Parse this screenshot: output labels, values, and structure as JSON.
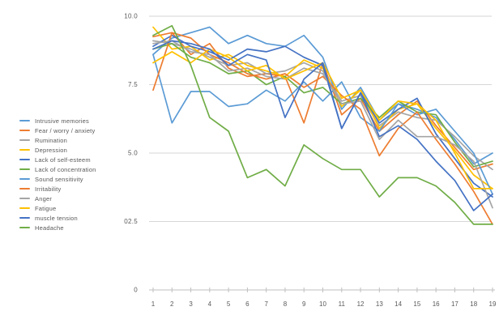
{
  "chart_data": {
    "type": "line",
    "title": "",
    "xlabel": "",
    "ylabel": "",
    "ylim": [
      0,
      10
    ],
    "grid": true,
    "legend_position": "left",
    "x": [
      1,
      2,
      3,
      4,
      5,
      6,
      7,
      8,
      9,
      10,
      11,
      12,
      13,
      14,
      15,
      16,
      17,
      18,
      19
    ],
    "x_tick_labels": [
      "1",
      "2",
      "3",
      "4",
      "5",
      "6",
      "7",
      "8",
      "9",
      "10",
      "11",
      "12",
      "13",
      "14",
      "15",
      "16",
      "17",
      "18",
      "19"
    ],
    "y_ticks": [
      {
        "label": "10.0",
        "value": 10
      },
      {
        "label": "7.5",
        "value": 7.5
      },
      {
        "label": "5.0",
        "value": 5
      },
      {
        "label": "02.5",
        "value": 2.5
      },
      {
        "label": "0",
        "value": 0
      }
    ],
    "series": [
      {
        "name": "Intrusive memories",
        "color": "#5B9BD5",
        "values": [
          8.6,
          9.2,
          9.4,
          9.6,
          9.0,
          9.3,
          9.0,
          8.9,
          9.3,
          8.5,
          6.6,
          7.4,
          6.2,
          6.8,
          6.6,
          6.3,
          5.5,
          4.6,
          5.0
        ]
      },
      {
        "name": "Fear / worry / anxiety",
        "color": "#ED7D31",
        "values": [
          9.25,
          9.4,
          8.6,
          9.0,
          8.1,
          7.8,
          7.9,
          7.8,
          6.1,
          8.3,
          6.4,
          7.0,
          5.8,
          6.4,
          6.9,
          6.0,
          5.2,
          4.4,
          4.6
        ]
      },
      {
        "name": "Rumination",
        "color": "#A5A5A5",
        "values": [
          9.1,
          9.0,
          8.8,
          8.5,
          8.2,
          8.3,
          7.9,
          8.0,
          8.3,
          8.0,
          6.9,
          7.1,
          6.0,
          6.5,
          6.3,
          6.2,
          5.6,
          4.9,
          4.4
        ]
      },
      {
        "name": "Depression",
        "color": "#FFC000",
        "values": [
          9.6,
          8.8,
          8.9,
          8.4,
          8.6,
          8.2,
          8.0,
          7.8,
          8.4,
          8.1,
          6.7,
          7.3,
          5.9,
          6.6,
          6.8,
          5.9,
          5.1,
          4.2,
          3.7
        ]
      },
      {
        "name": "Lack of self-esteem",
        "color": "#4472C4",
        "values": [
          8.9,
          9.3,
          8.9,
          8.7,
          8.4,
          8.8,
          8.7,
          8.9,
          8.5,
          8.2,
          5.9,
          7.2,
          6.1,
          6.6,
          7.0,
          5.7,
          4.8,
          3.9,
          3.4
        ]
      },
      {
        "name": "Lack of concentration",
        "color": "#70AD47",
        "values": [
          8.8,
          9.0,
          8.5,
          8.3,
          7.9,
          8.0,
          7.5,
          7.8,
          7.2,
          7.4,
          6.8,
          7.0,
          6.3,
          6.9,
          6.5,
          6.4,
          5.4,
          4.5,
          4.7
        ]
      },
      {
        "name": "Sound sensitivity",
        "color": "#5B9BD5",
        "values": [
          8.6,
          6.1,
          7.25,
          7.25,
          6.7,
          6.8,
          7.3,
          6.9,
          7.6,
          6.9,
          7.6,
          6.3,
          5.8,
          6.8,
          6.4,
          6.6,
          5.8,
          5.0,
          3.5
        ]
      },
      {
        "name": "Irritability",
        "color": "#ED7D31",
        "values": [
          7.3,
          9.4,
          9.2,
          8.6,
          8.3,
          7.9,
          7.7,
          7.9,
          7.4,
          7.8,
          7.1,
          6.6,
          4.9,
          5.9,
          6.5,
          5.5,
          4.6,
          3.6,
          2.4
        ]
      },
      {
        "name": "Anger",
        "color": "#A5A5A5",
        "values": [
          9.0,
          9.1,
          8.7,
          8.6,
          8.0,
          8.1,
          7.8,
          7.7,
          8.1,
          7.9,
          6.8,
          6.9,
          5.5,
          6.2,
          5.6,
          5.6,
          5.3,
          4.7,
          3.0
        ]
      },
      {
        "name": "Fatigue",
        "color": "#FFC000",
        "values": [
          8.3,
          8.7,
          8.3,
          8.8,
          8.5,
          8.0,
          8.2,
          7.7,
          8.0,
          8.3,
          7.0,
          7.3,
          6.2,
          6.9,
          6.8,
          6.2,
          5.0,
          3.7,
          3.7
        ]
      },
      {
        "name": "muscle tension",
        "color": "#4472C4",
        "values": [
          8.8,
          9.1,
          9.0,
          8.8,
          8.2,
          8.6,
          8.4,
          6.3,
          7.7,
          8.3,
          5.9,
          7.2,
          5.6,
          6.0,
          5.5,
          4.7,
          4.0,
          2.9,
          3.5
        ]
      },
      {
        "name": "Headache",
        "color": "#70AD47",
        "values": [
          9.3,
          9.65,
          8.2,
          6.3,
          5.8,
          4.1,
          4.4,
          3.8,
          5.3,
          4.8,
          4.4,
          4.4,
          3.4,
          4.1,
          4.1,
          3.8,
          3.2,
          2.4,
          2.4
        ]
      }
    ],
    "colors": {
      "gridline": "#D6D6D6",
      "axis": "#BFBFBF",
      "tick": "#BFBFBF",
      "label_text": "#595959"
    }
  }
}
